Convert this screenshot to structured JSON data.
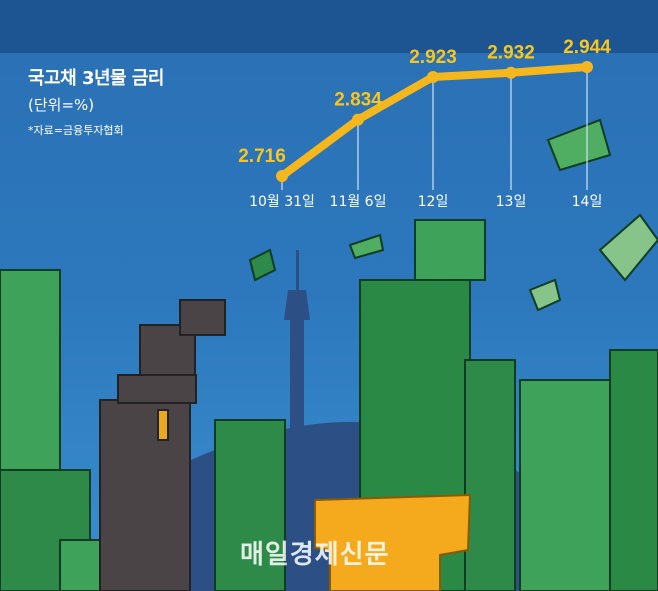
{
  "chart_data": {
    "type": "line",
    "title": "국고채 3년물 금리",
    "unit_note": "(단위=%)",
    "source": "*자료=금융투자협회",
    "categories": [
      "10월 31일",
      "11월 6일",
      "12일",
      "13일",
      "14일"
    ],
    "values": [
      2.716,
      2.834,
      2.923,
      2.932,
      2.944
    ],
    "value_labels": [
      "2.716",
      "2.834",
      "2.923",
      "2.932",
      "2.944"
    ],
    "grid": false,
    "legend": "none",
    "line_color": "#f6b71c",
    "label_color": "#f8c61e"
  },
  "watermark": "매일경제신문"
}
